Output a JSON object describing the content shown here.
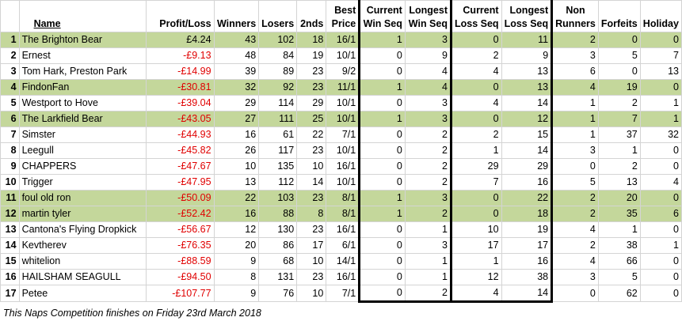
{
  "columns": {
    "name": "Name",
    "profit_loss": "Profit/Loss",
    "winners": "Winners",
    "losers": "Losers",
    "seconds": "2nds",
    "best_price": [
      "Best",
      "Price"
    ],
    "current_win_seq": [
      "Current",
      "Win Seq"
    ],
    "longest_win_seq": [
      "Longest",
      "Win Seq"
    ],
    "current_loss_seq": [
      "Current",
      "Loss Seq"
    ],
    "longest_loss_seq": [
      "Longest",
      "Loss Seq"
    ],
    "non_runners": [
      "Non",
      "Runners"
    ],
    "forfeits": "Forfeits",
    "holiday": "Holiday"
  },
  "rows": [
    {
      "idx": "1",
      "name": "The Brighton Bear",
      "pl": "£4.24",
      "w": "43",
      "l": "102",
      "s": "18",
      "bp": "16/1",
      "cws": "1",
      "lws": "3",
      "cls": "0",
      "lls": "11",
      "nr": "2",
      "f": "0",
      "h": "0",
      "hl": true,
      "neg": false
    },
    {
      "idx": "2",
      "name": "Ernest",
      "pl": "-£9.13",
      "w": "48",
      "l": "84",
      "s": "19",
      "bp": "10/1",
      "cws": "0",
      "lws": "9",
      "cls": "2",
      "lls": "9",
      "nr": "3",
      "f": "5",
      "h": "7",
      "hl": false,
      "neg": true
    },
    {
      "idx": "3",
      "name": "Tom Hark, Preston Park",
      "pl": "-£14.99",
      "w": "39",
      "l": "89",
      "s": "23",
      "bp": "9/2",
      "cws": "0",
      "lws": "4",
      "cls": "4",
      "lls": "13",
      "nr": "6",
      "f": "0",
      "h": "13",
      "hl": false,
      "neg": true
    },
    {
      "idx": "4",
      "name": "FindonFan",
      "pl": "-£30.81",
      "w": "32",
      "l": "92",
      "s": "23",
      "bp": "11/1",
      "cws": "1",
      "lws": "4",
      "cls": "0",
      "lls": "13",
      "nr": "4",
      "f": "19",
      "h": "0",
      "hl": true,
      "neg": true
    },
    {
      "idx": "5",
      "name": "Westport to Hove",
      "pl": "-£39.04",
      "w": "29",
      "l": "114",
      "s": "29",
      "bp": "10/1",
      "cws": "0",
      "lws": "3",
      "cls": "4",
      "lls": "14",
      "nr": "1",
      "f": "2",
      "h": "1",
      "hl": false,
      "neg": true
    },
    {
      "idx": "6",
      "name": "The Larkfield Bear",
      "pl": "-£43.05",
      "w": "27",
      "l": "111",
      "s": "25",
      "bp": "10/1",
      "cws": "1",
      "lws": "3",
      "cls": "0",
      "lls": "12",
      "nr": "1",
      "f": "7",
      "h": "1",
      "hl": true,
      "neg": true
    },
    {
      "idx": "7",
      "name": "Simster",
      "pl": "-£44.93",
      "w": "16",
      "l": "61",
      "s": "22",
      "bp": "7/1",
      "cws": "0",
      "lws": "2",
      "cls": "2",
      "lls": "15",
      "nr": "1",
      "f": "37",
      "h": "32",
      "hl": false,
      "neg": true
    },
    {
      "idx": "8",
      "name": "Leegull",
      "pl": "-£45.82",
      "w": "26",
      "l": "117",
      "s": "23",
      "bp": "10/1",
      "cws": "0",
      "lws": "2",
      "cls": "1",
      "lls": "14",
      "nr": "3",
      "f": "1",
      "h": "0",
      "hl": false,
      "neg": true
    },
    {
      "idx": "9",
      "name": "CHAPPERS",
      "pl": "-£47.67",
      "w": "10",
      "l": "135",
      "s": "10",
      "bp": "16/1",
      "cws": "0",
      "lws": "2",
      "cls": "29",
      "lls": "29",
      "nr": "0",
      "f": "2",
      "h": "0",
      "hl": false,
      "neg": true
    },
    {
      "idx": "10",
      "name": "Trigger",
      "pl": "-£47.95",
      "w": "13",
      "l": "112",
      "s": "14",
      "bp": "10/1",
      "cws": "0",
      "lws": "2",
      "cls": "7",
      "lls": "16",
      "nr": "5",
      "f": "13",
      "h": "4",
      "hl": false,
      "neg": true
    },
    {
      "idx": "11",
      "name": "foul old ron",
      "pl": "-£50.09",
      "w": "22",
      "l": "103",
      "s": "23",
      "bp": "8/1",
      "cws": "1",
      "lws": "3",
      "cls": "0",
      "lls": "22",
      "nr": "2",
      "f": "20",
      "h": "0",
      "hl": true,
      "neg": true
    },
    {
      "idx": "12",
      "name": "martin tyler",
      "pl": "-£52.42",
      "w": "16",
      "l": "88",
      "s": "8",
      "bp": "8/1",
      "cws": "1",
      "lws": "2",
      "cls": "0",
      "lls": "18",
      "nr": "2",
      "f": "35",
      "h": "6",
      "hl": true,
      "neg": true
    },
    {
      "idx": "13",
      "name": "Cantona's Flying Dropkick",
      "pl": "-£56.67",
      "w": "12",
      "l": "130",
      "s": "23",
      "bp": "16/1",
      "cws": "0",
      "lws": "1",
      "cls": "10",
      "lls": "19",
      "nr": "4",
      "f": "1",
      "h": "0",
      "hl": false,
      "neg": true
    },
    {
      "idx": "14",
      "name": "Kevtherev",
      "pl": "-£76.35",
      "w": "20",
      "l": "86",
      "s": "17",
      "bp": "6/1",
      "cws": "0",
      "lws": "3",
      "cls": "17",
      "lls": "17",
      "nr": "2",
      "f": "38",
      "h": "1",
      "hl": false,
      "neg": true
    },
    {
      "idx": "15",
      "name": "whitelion",
      "pl": "-£88.59",
      "w": "9",
      "l": "68",
      "s": "10",
      "bp": "14/1",
      "cws": "0",
      "lws": "1",
      "cls": "1",
      "lls": "16",
      "nr": "4",
      "f": "66",
      "h": "0",
      "hl": false,
      "neg": true
    },
    {
      "idx": "16",
      "name": "HAILSHAM SEAGULL",
      "pl": "-£94.50",
      "w": "8",
      "l": "131",
      "s": "23",
      "bp": "16/1",
      "cws": "0",
      "lws": "1",
      "cls": "12",
      "lls": "38",
      "nr": "3",
      "f": "5",
      "h": "0",
      "hl": false,
      "neg": true
    },
    {
      "idx": "17",
      "name": "Petee",
      "pl": "-£107.77",
      "w": "9",
      "l": "76",
      "s": "10",
      "bp": "7/1",
      "cws": "0",
      "lws": "2",
      "cls": "4",
      "lls": "14",
      "nr": "0",
      "f": "62",
      "h": "0",
      "hl": false,
      "neg": true
    }
  ],
  "footnote": "This Naps Competition finishes on Friday 23rd March 2018"
}
